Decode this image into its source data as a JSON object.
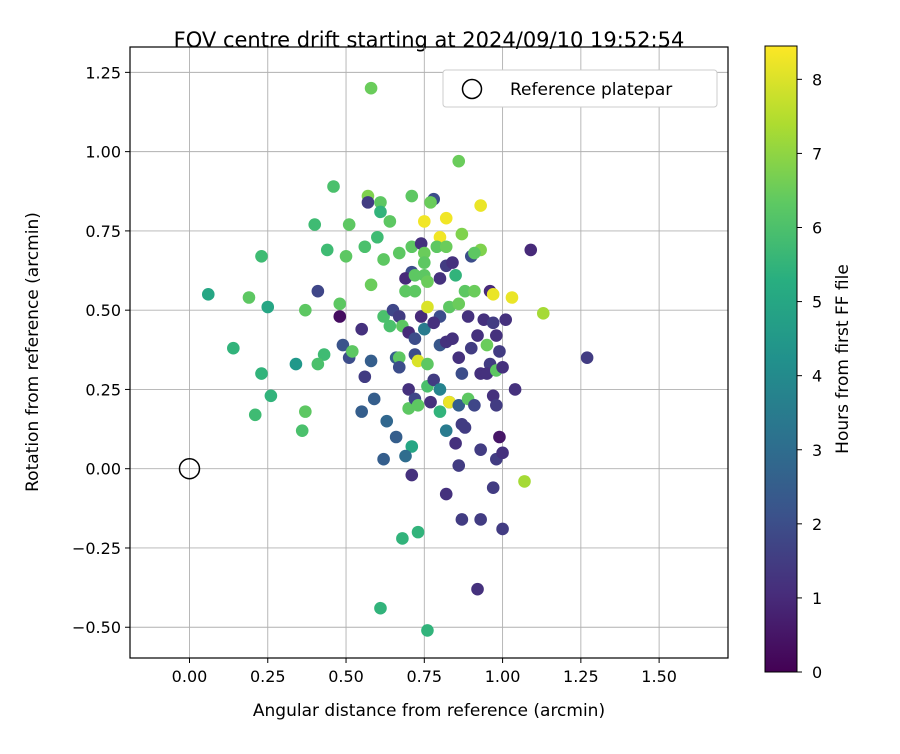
{
  "chart_data": {
    "type": "scatter",
    "title": "FOV centre drift starting at 2024/09/10 19:52:54",
    "xlabel": "Angular distance from reference (arcmin)",
    "ylabel": "Rotation from reference (arcmin)",
    "xlim": [
      -0.19,
      1.72
    ],
    "ylim": [
      -0.597,
      1.33
    ],
    "xticks": [
      0.0,
      0.25,
      0.5,
      0.75,
      1.0,
      1.25,
      1.5
    ],
    "xtick_labels": [
      "0.00",
      "0.25",
      "0.50",
      "0.75",
      "1.00",
      "1.25",
      "1.50"
    ],
    "yticks": [
      -0.5,
      -0.25,
      0.0,
      0.25,
      0.5,
      0.75,
      1.0,
      1.25
    ],
    "ytick_labels": [
      "−0.50",
      "−0.25",
      "0.00",
      "0.25",
      "0.50",
      "0.75",
      "1.00",
      "1.25"
    ],
    "grid": true,
    "legend": {
      "placement": "top-right",
      "label": "Reference platepar"
    },
    "reference_point": {
      "x": 0.0,
      "y": 0.0
    },
    "colorbar": {
      "label": "Hours from first FF file",
      "range": [
        0,
        8.45
      ],
      "ticks": [
        0,
        1,
        2,
        3,
        4,
        5,
        6,
        7,
        8
      ],
      "tick_labels": [
        "0",
        "1",
        "2",
        "3",
        "4",
        "5",
        "6",
        "7",
        "8"
      ],
      "colormap": "viridis"
    },
    "points": [
      [
        0.58,
        1.2,
        6.5
      ],
      [
        0.46,
        0.89,
        6.0
      ],
      [
        0.86,
        0.97,
        6.5
      ],
      [
        0.57,
        0.86,
        6.8
      ],
      [
        0.71,
        0.86,
        6.3
      ],
      [
        0.57,
        0.84,
        1.5
      ],
      [
        0.61,
        0.84,
        6.3
      ],
      [
        0.78,
        0.85,
        2.0
      ],
      [
        0.77,
        0.84,
        6.5
      ],
      [
        0.93,
        0.83,
        8.2
      ],
      [
        0.61,
        0.81,
        5.5
      ],
      [
        0.82,
        0.79,
        8.3
      ],
      [
        0.75,
        0.78,
        8.3
      ],
      [
        0.64,
        0.78,
        6.3
      ],
      [
        0.4,
        0.77,
        5.8
      ],
      [
        0.51,
        0.77,
        6.3
      ],
      [
        0.6,
        0.73,
        5.8
      ],
      [
        0.8,
        0.73,
        8.3
      ],
      [
        0.87,
        0.74,
        6.8
      ],
      [
        0.56,
        0.7,
        6.0
      ],
      [
        0.71,
        0.7,
        6.3
      ],
      [
        0.74,
        0.71,
        1.2
      ],
      [
        0.79,
        0.7,
        6.3
      ],
      [
        0.82,
        0.7,
        6.5
      ],
      [
        1.09,
        0.69,
        1.0
      ],
      [
        0.93,
        0.69,
        6.8
      ],
      [
        0.23,
        0.67,
        5.8
      ],
      [
        0.44,
        0.69,
        5.8
      ],
      [
        0.5,
        0.67,
        6.3
      ],
      [
        0.62,
        0.66,
        6.3
      ],
      [
        0.67,
        0.68,
        6.3
      ],
      [
        0.75,
        0.68,
        6.5
      ],
      [
        0.9,
        0.67,
        2.0
      ],
      [
        0.91,
        0.68,
        6.3
      ],
      [
        0.71,
        0.62,
        2.0
      ],
      [
        0.75,
        0.65,
        6.3
      ],
      [
        0.82,
        0.64,
        1.5
      ],
      [
        0.84,
        0.65,
        1.2
      ],
      [
        0.75,
        0.61,
        6.3
      ],
      [
        0.69,
        0.6,
        1.0
      ],
      [
        0.72,
        0.61,
        6.3
      ],
      [
        0.76,
        0.59,
        6.5
      ],
      [
        0.8,
        0.6,
        1.2
      ],
      [
        0.85,
        0.61,
        5.5
      ],
      [
        0.96,
        0.56,
        1.0
      ],
      [
        0.41,
        0.56,
        1.8
      ],
      [
        0.06,
        0.55,
        5.0
      ],
      [
        0.19,
        0.54,
        6.3
      ],
      [
        0.58,
        0.58,
        6.5
      ],
      [
        0.69,
        0.56,
        6.3
      ],
      [
        0.72,
        0.56,
        6.3
      ],
      [
        0.88,
        0.56,
        6.3
      ],
      [
        0.91,
        0.56,
        6.5
      ],
      [
        0.97,
        0.55,
        8.2
      ],
      [
        1.03,
        0.54,
        8.2
      ],
      [
        0.37,
        0.5,
        6.3
      ],
      [
        0.48,
        0.52,
        6.3
      ],
      [
        0.25,
        0.51,
        5.0
      ],
      [
        0.48,
        0.48,
        0.3
      ],
      [
        0.62,
        0.48,
        6.0
      ],
      [
        0.65,
        0.5,
        1.8
      ],
      [
        0.67,
        0.48,
        1.5
      ],
      [
        0.74,
        0.48,
        1.0
      ],
      [
        0.76,
        0.51,
        8.0
      ],
      [
        0.8,
        0.48,
        2.0
      ],
      [
        0.83,
        0.51,
        6.3
      ],
      [
        0.86,
        0.52,
        6.5
      ],
      [
        0.89,
        0.48,
        1.2
      ],
      [
        0.94,
        0.47,
        1.2
      ],
      [
        0.97,
        0.46,
        1.5
      ],
      [
        1.01,
        0.47,
        1.2
      ],
      [
        1.13,
        0.49,
        7.3
      ],
      [
        0.14,
        0.38,
        5.5
      ],
      [
        0.43,
        0.36,
        5.8
      ],
      [
        0.49,
        0.39,
        2.2
      ],
      [
        0.51,
        0.35,
        2.0
      ],
      [
        0.52,
        0.37,
        6.3
      ],
      [
        0.55,
        0.44,
        1.2
      ],
      [
        0.58,
        0.34,
        2.5
      ],
      [
        0.64,
        0.45,
        6.0
      ],
      [
        0.66,
        0.35,
        2.5
      ],
      [
        0.67,
        0.35,
        6.3
      ],
      [
        0.68,
        0.45,
        6.3
      ],
      [
        0.7,
        0.43,
        1.0
      ],
      [
        0.72,
        0.36,
        2.0
      ],
      [
        0.72,
        0.41,
        2.0
      ],
      [
        0.73,
        0.34,
        8.0
      ],
      [
        0.75,
        0.44,
        3.5
      ],
      [
        0.76,
        0.33,
        6.3
      ],
      [
        0.78,
        0.46,
        1.2
      ],
      [
        0.8,
        0.39,
        2.3
      ],
      [
        0.82,
        0.4,
        1.2
      ],
      [
        0.84,
        0.41,
        1.2
      ],
      [
        0.86,
        0.35,
        1.2
      ],
      [
        0.87,
        0.3,
        2.0
      ],
      [
        0.9,
        0.38,
        1.5
      ],
      [
        0.92,
        0.42,
        1.2
      ],
      [
        0.93,
        0.3,
        1.2
      ],
      [
        0.95,
        0.39,
        6.5
      ],
      [
        0.96,
        0.33,
        1.5
      ],
      [
        0.98,
        0.42,
        1.2
      ],
      [
        0.99,
        0.37,
        1.5
      ],
      [
        1.27,
        0.35,
        1.5
      ],
      [
        0.23,
        0.3,
        5.5
      ],
      [
        0.34,
        0.33,
        4.5
      ],
      [
        0.41,
        0.33,
        6.0
      ],
      [
        0.56,
        0.29,
        1.5
      ],
      [
        0.59,
        0.22,
        2.5
      ],
      [
        0.55,
        0.18,
        2.5
      ],
      [
        0.63,
        0.15,
        2.8
      ],
      [
        0.67,
        0.32,
        2.0
      ],
      [
        0.7,
        0.25,
        1.2
      ],
      [
        0.7,
        0.19,
        6.3
      ],
      [
        0.72,
        0.22,
        1.8
      ],
      [
        0.73,
        0.2,
        6.3
      ],
      [
        0.76,
        0.26,
        6.0
      ],
      [
        0.77,
        0.21,
        1.2
      ],
      [
        0.78,
        0.28,
        1.5
      ],
      [
        0.8,
        0.25,
        3.8
      ],
      [
        0.8,
        0.18,
        5.5
      ],
      [
        0.83,
        0.21,
        2.5
      ],
      [
        0.83,
        0.21,
        8.2
      ],
      [
        0.86,
        0.2,
        2.5
      ],
      [
        0.87,
        0.14,
        1.5
      ],
      [
        0.89,
        0.22,
        6.3
      ],
      [
        0.91,
        0.2,
        1.8
      ],
      [
        0.95,
        0.3,
        1.2
      ],
      [
        0.97,
        0.23,
        1.2
      ],
      [
        0.98,
        0.2,
        1.5
      ],
      [
        0.98,
        0.31,
        6.3
      ],
      [
        1.0,
        0.32,
        1.2
      ],
      [
        1.04,
        0.25,
        1.2
      ],
      [
        0.26,
        0.23,
        5.5
      ],
      [
        0.37,
        0.18,
        6.3
      ],
      [
        0.21,
        0.17,
        5.8
      ],
      [
        0.36,
        0.12,
        6.0
      ],
      [
        0.66,
        0.1,
        2.5
      ],
      [
        0.71,
        0.07,
        5.0
      ],
      [
        0.62,
        0.03,
        2.5
      ],
      [
        0.69,
        0.04,
        3.0
      ],
      [
        0.82,
        0.12,
        3.5
      ],
      [
        0.85,
        0.08,
        1.2
      ],
      [
        0.88,
        0.13,
        1.5
      ],
      [
        0.93,
        0.06,
        1.5
      ],
      [
        0.98,
        0.03,
        1.5
      ],
      [
        0.99,
        0.1,
        0.5
      ],
      [
        1.0,
        0.05,
        1.2
      ],
      [
        0.86,
        0.01,
        1.5
      ],
      [
        0.71,
        -0.02,
        1.2
      ],
      [
        0.82,
        -0.08,
        1.2
      ],
      [
        0.97,
        -0.06,
        1.5
      ],
      [
        1.07,
        -0.04,
        7.3
      ],
      [
        0.87,
        -0.16,
        1.5
      ],
      [
        0.93,
        -0.16,
        1.5
      ],
      [
        1.0,
        -0.19,
        1.5
      ],
      [
        0.68,
        -0.22,
        5.5
      ],
      [
        0.73,
        -0.2,
        5.5
      ],
      [
        0.92,
        -0.38,
        1.2
      ],
      [
        0.61,
        -0.44,
        5.5
      ],
      [
        0.76,
        -0.51,
        5.5
      ]
    ]
  }
}
